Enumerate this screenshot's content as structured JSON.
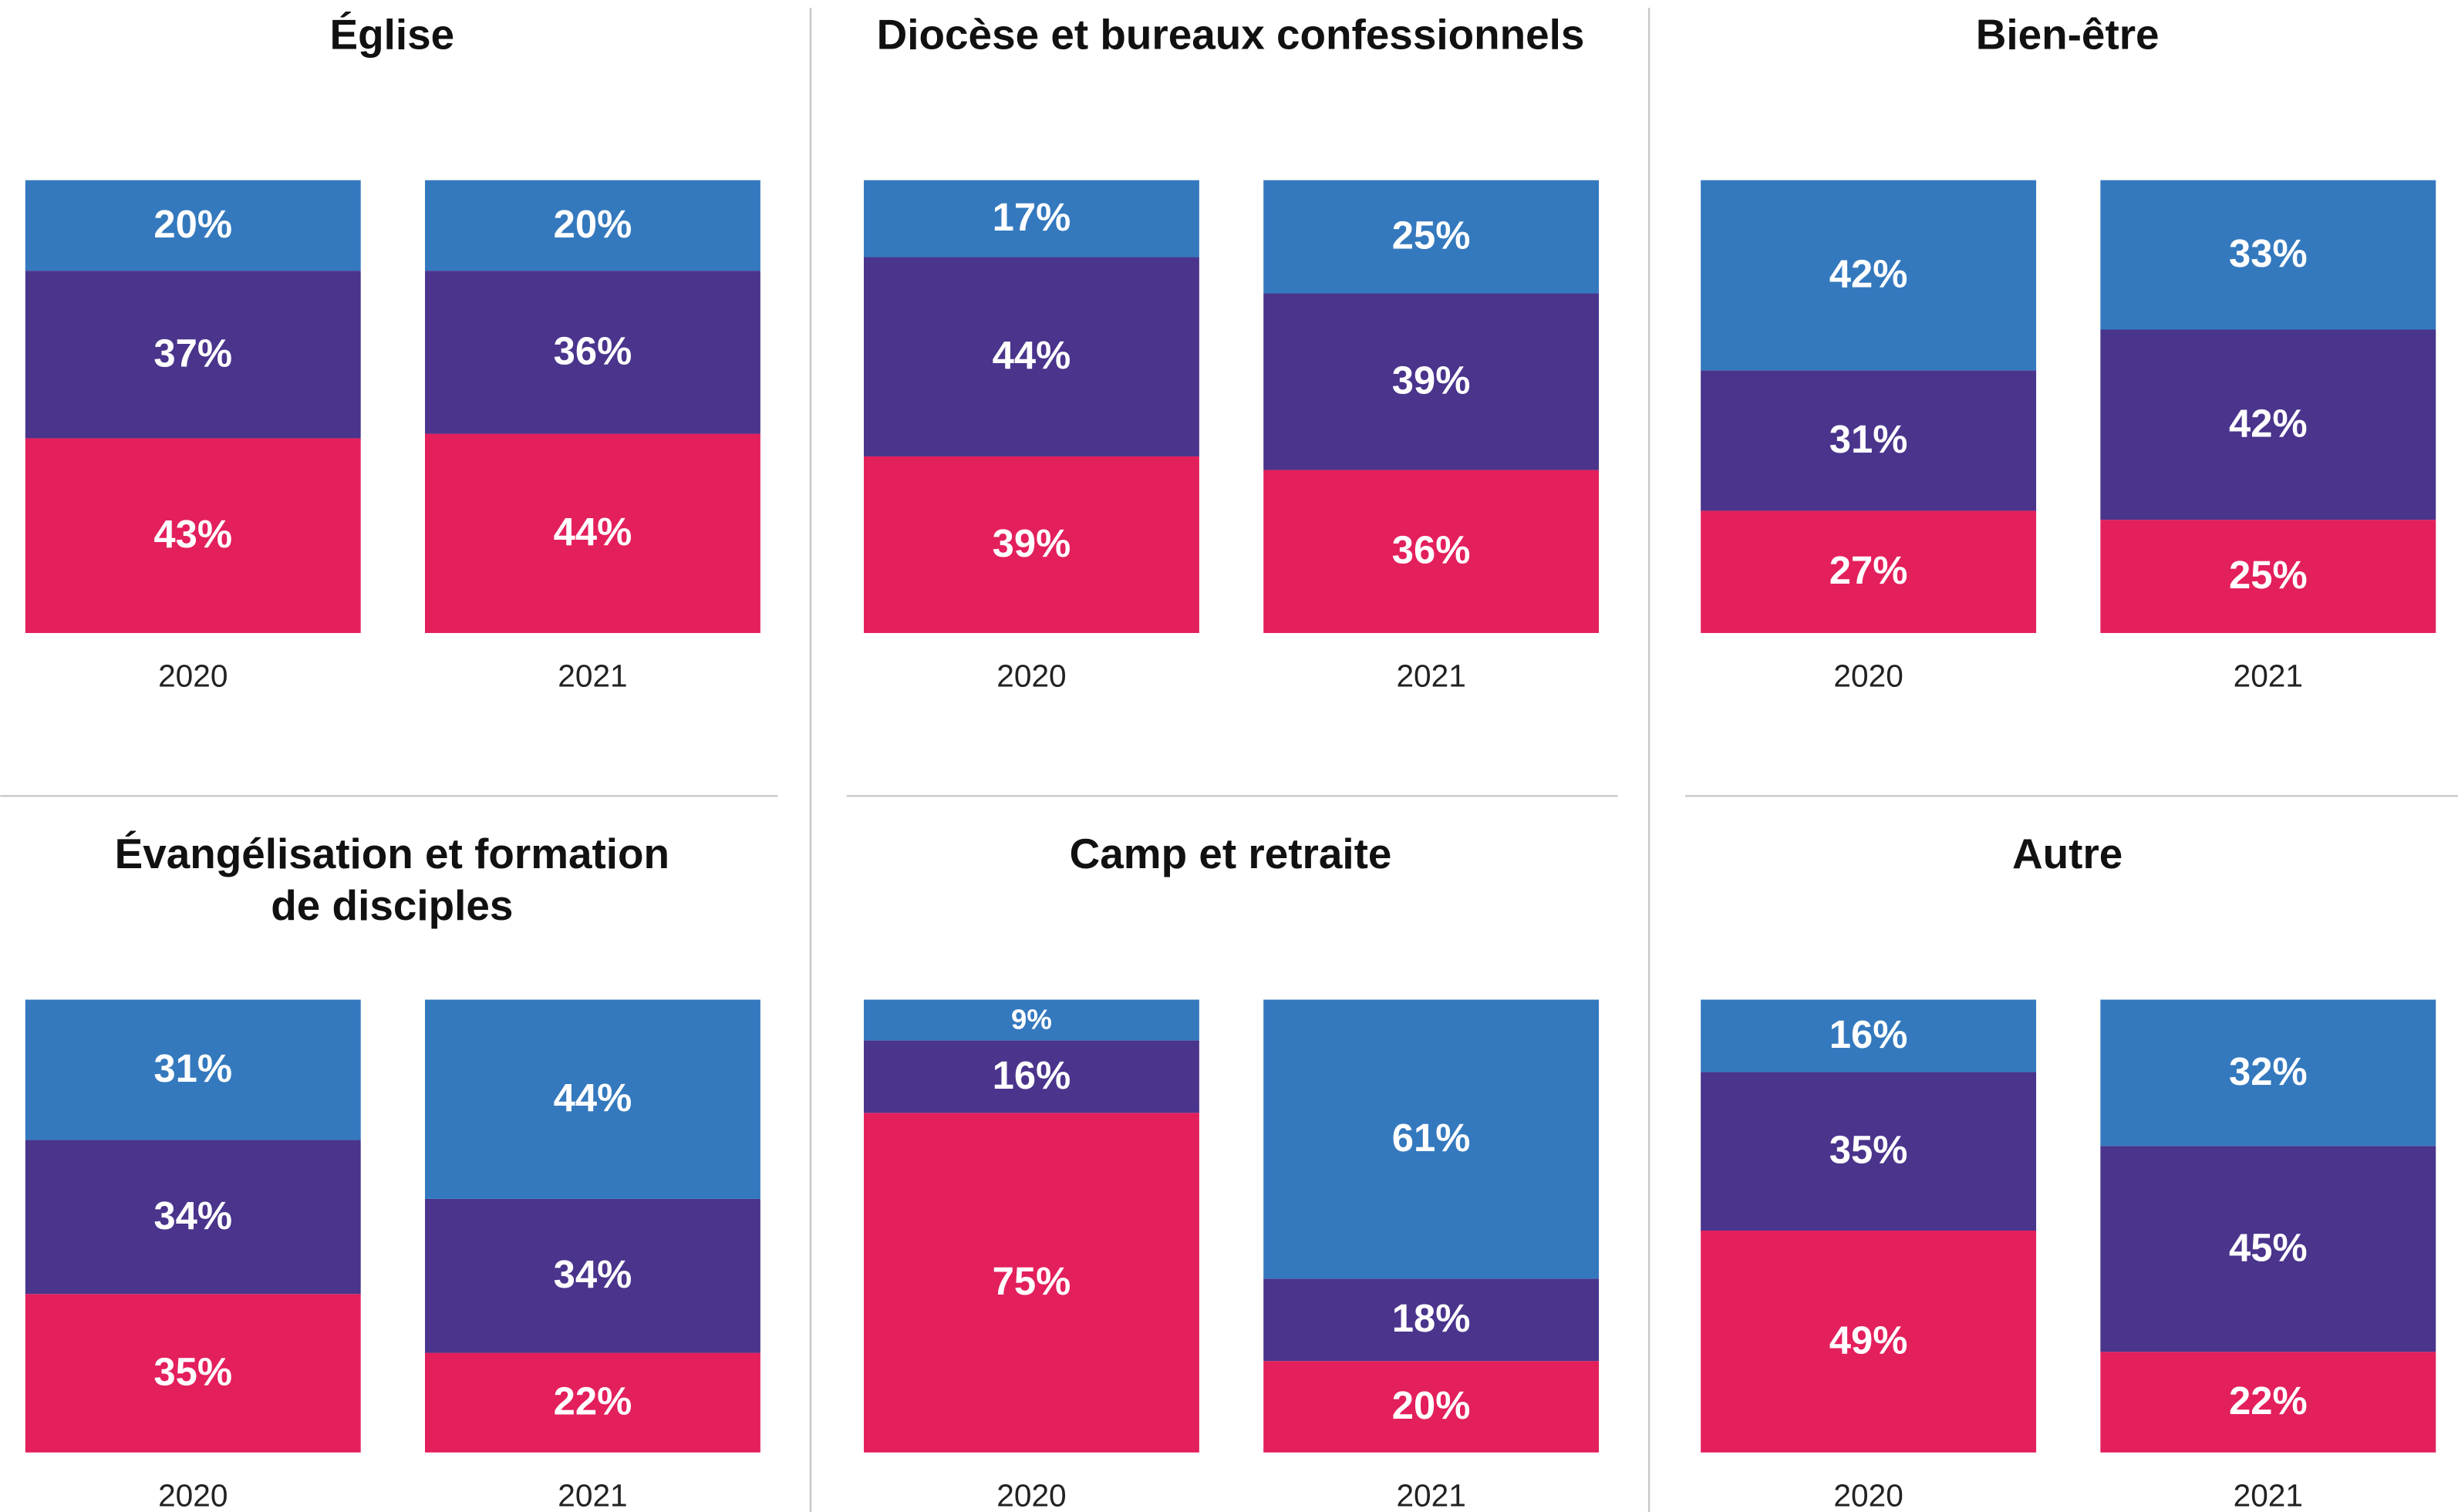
{
  "chart_data": [
    {
      "type": "bar",
      "stacked": true,
      "title": "Église",
      "categories": [
        "2020",
        "2021"
      ],
      "series": [
        {
          "color": "#e31f5c",
          "values": [
            43,
            44
          ],
          "value_labels": [
            "43%",
            "44%"
          ]
        },
        {
          "color": "#4a348c",
          "values": [
            37,
            36
          ],
          "value_labels": [
            "37%",
            "36%"
          ]
        },
        {
          "color": "#3479be",
          "values": [
            20,
            20
          ],
          "value_labels": [
            "20%",
            "20%"
          ]
        }
      ]
    },
    {
      "type": "bar",
      "stacked": true,
      "title": "Diocèse et bureaux confessionnels",
      "categories": [
        "2020",
        "2021"
      ],
      "series": [
        {
          "color": "#e31f5c",
          "values": [
            39,
            36
          ],
          "value_labels": [
            "39%",
            "36%"
          ]
        },
        {
          "color": "#4a348c",
          "values": [
            44,
            39
          ],
          "value_labels": [
            "44%",
            "39%"
          ]
        },
        {
          "color": "#3479be",
          "values": [
            17,
            25
          ],
          "value_labels": [
            "17%",
            "25%"
          ]
        }
      ]
    },
    {
      "type": "bar",
      "stacked": true,
      "title": "Bien-être",
      "categories": [
        "2020",
        "2021"
      ],
      "series": [
        {
          "color": "#e31f5c",
          "values": [
            27,
            25
          ],
          "value_labels": [
            "27%",
            "25%"
          ]
        },
        {
          "color": "#4a348c",
          "values": [
            31,
            42
          ],
          "value_labels": [
            "31%",
            "42%"
          ]
        },
        {
          "color": "#3479be",
          "values": [
            42,
            33
          ],
          "value_labels": [
            "42%",
            "33%"
          ]
        }
      ]
    },
    {
      "type": "bar",
      "stacked": true,
      "title": [
        "Évangélisation et formation",
        "de disciples"
      ],
      "categories": [
        "2020",
        "2021"
      ],
      "series": [
        {
          "color": "#e31f5c",
          "values": [
            35,
            22
          ],
          "value_labels": [
            "35%",
            "22%"
          ]
        },
        {
          "color": "#4a348c",
          "values": [
            34,
            34
          ],
          "value_labels": [
            "34%",
            "34%"
          ]
        },
        {
          "color": "#3479be",
          "values": [
            31,
            44
          ],
          "value_labels": [
            "31%",
            "44%"
          ]
        }
      ]
    },
    {
      "type": "bar",
      "stacked": true,
      "title": "Camp et retraite",
      "categories": [
        "2020",
        "2021"
      ],
      "series": [
        {
          "color": "#e31f5c",
          "values": [
            75,
            20
          ],
          "value_labels": [
            "75%",
            "20%"
          ]
        },
        {
          "color": "#4a348c",
          "values": [
            16,
            18
          ],
          "value_labels": [
            "16%",
            "18%"
          ]
        },
        {
          "color": "#3479be",
          "values": [
            9,
            61
          ],
          "value_labels": [
            "9%",
            "61%"
          ]
        }
      ]
    },
    {
      "type": "bar",
      "stacked": true,
      "title": "Autre",
      "categories": [
        "2020",
        "2021"
      ],
      "series": [
        {
          "color": "#e31f5c",
          "values": [
            49,
            22
          ],
          "value_labels": [
            "49%",
            "22%"
          ]
        },
        {
          "color": "#4a348c",
          "values": [
            35,
            45
          ],
          "value_labels": [
            "35%",
            "45%"
          ]
        },
        {
          "color": "#3479be",
          "values": [
            16,
            32
          ],
          "value_labels": [
            "16%",
            "32%"
          ]
        }
      ]
    }
  ]
}
